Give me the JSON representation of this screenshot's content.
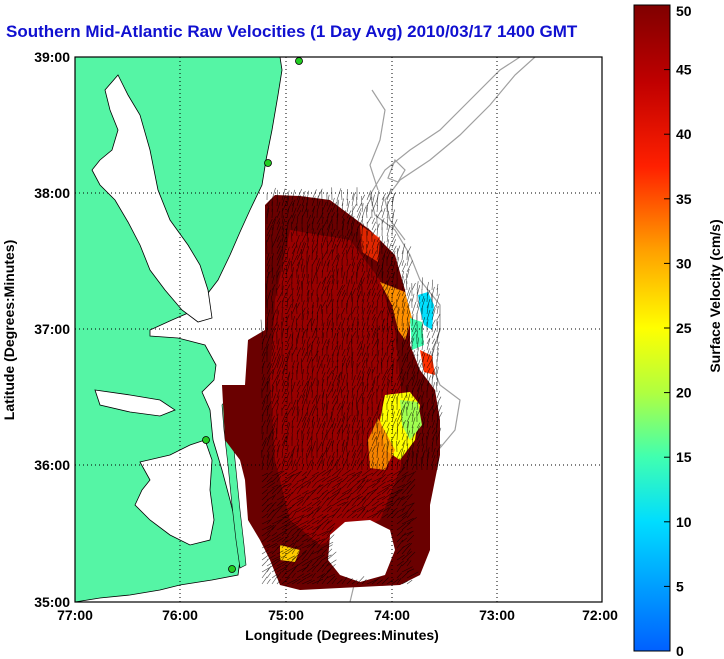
{
  "title": "Southern Mid-Atlantic Raw Velocities (1 Day Avg) 2010/03/17 1400 GMT",
  "axes": {
    "xlabel": "Longitude (Degrees:Minutes)",
    "ylabel": "Latitude (Degrees:Minutes)",
    "x_ticks": [
      "77:00",
      "76:00",
      "75:00",
      "74:00",
      "73:00",
      "72:00"
    ],
    "y_ticks": [
      "39:00",
      "38:00",
      "37:00",
      "36:00",
      "35:00"
    ]
  },
  "colorbar": {
    "label": "Surface Velocity (cm/s)",
    "ticks": [
      "0",
      "5",
      "10",
      "15",
      "20",
      "25",
      "30",
      "35",
      "40",
      "45",
      "50"
    ],
    "min": 0,
    "max": 50
  },
  "colors": {
    "land": "#55f5a5",
    "ocean": "#ffffff",
    "title": "#1010d0",
    "bathymetry": "#a0a0a0",
    "stations": "#22cc22"
  }
}
